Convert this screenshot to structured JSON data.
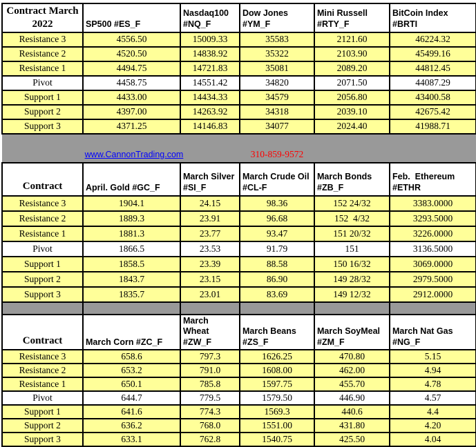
{
  "banner": {
    "link_text": "www.CannonTrading.com",
    "phone": "310-859-9572"
  },
  "colors": {
    "row_yellow": "#FFFF99",
    "pivot_white": "#FFFFFF",
    "band_gray": "#999999",
    "band_dark_gray": "#808080",
    "link_blue": "#0000FF",
    "phone_red": "#FF0000",
    "grid_black": "#000000",
    "navy_strip": "#000080"
  },
  "tables": [
    {
      "id": "stock-indices",
      "corner": "Contract March\n2022",
      "headers": [
        "SP500 #ES_F",
        "Nasdaq100\n#NQ_F",
        "Dow Jones\n#YM_F",
        "Mini Russell\n#RTY_F",
        "BitCoin Index #BRTI"
      ],
      "rows": [
        {
          "label": "Resistance 3",
          "values": [
            "4556.50",
            "15009.33",
            "35583",
            "2121.60",
            "46224.32"
          ]
        },
        {
          "label": "Resistance 2",
          "values": [
            "4520.50",
            "14838.92",
            "35322",
            "2103.90",
            "45499.16"
          ]
        },
        {
          "label": "Resistance 1",
          "values": [
            "4494.75",
            "14721.83",
            "35081",
            "2089.20",
            "44812.45"
          ]
        },
        {
          "label": "Pivot",
          "values": [
            "4458.75",
            "14551.42",
            "34820",
            "2071.50",
            "44087.29"
          ]
        },
        {
          "label": "Support 1",
          "values": [
            "4433.00",
            "14434.33",
            "34579",
            "2056.80",
            "43400.58"
          ]
        },
        {
          "label": "Support 2",
          "values": [
            "4397.00",
            "14263.92",
            "34318",
            "2039.10",
            "42675.42"
          ]
        },
        {
          "label": "Support 3",
          "values": [
            "4371.25",
            "14146.83",
            "34077",
            "2024.40",
            "41988.71"
          ]
        }
      ]
    },
    {
      "id": "metals-energy-bonds",
      "corner": "Contract",
      "headers": [
        "April. Gold #GC_F",
        "March Silver\n#SI_F",
        "March Crude Oil\n#CL-F",
        "March Bonds\n#ZB_F",
        "Feb.  Ethereum\n#ETHR"
      ],
      "rows": [
        {
          "label": "Resistance 3",
          "values": [
            "1904.1",
            "24.15",
            "98.36",
            "152 24/32",
            "3383.0000"
          ]
        },
        {
          "label": "Resistance 2",
          "values": [
            "1889.3",
            "23.91",
            "96.68",
            "152  4/32",
            "3293.5000"
          ]
        },
        {
          "label": "Resistance 1",
          "values": [
            "1881.3",
            "23.77",
            "93.47",
            "151 20/32",
            "3226.0000"
          ]
        },
        {
          "label": "Pivot",
          "values": [
            "1866.5",
            "23.53",
            "91.79",
            "151",
            "3136.5000"
          ]
        },
        {
          "label": "Support 1",
          "values": [
            "1858.5",
            "23.39",
            "88.58",
            "150 16/32",
            "3069.0000"
          ]
        },
        {
          "label": "Support 2",
          "values": [
            "1843.7",
            "23.15",
            "86.90",
            "149 28/32",
            "2979.5000"
          ]
        },
        {
          "label": "Support 3",
          "values": [
            "1835.7",
            "23.01",
            "83.69",
            "149 12/32",
            "2912.0000"
          ]
        }
      ]
    },
    {
      "id": "grains-natgas",
      "corner": "Contract",
      "headers": [
        "March Corn #ZC_F",
        "March  Wheat\n#ZW_F",
        "March Beans\n#ZS_F",
        "March SoyMeal\n#ZM_F",
        "March Nat Gas\n#NG_F"
      ],
      "rows": [
        {
          "label": "Resistance 3",
          "values": [
            "658.6",
            "797.3",
            "1626.25",
            "470.80",
            "5.15"
          ]
        },
        {
          "label": "Resistance 2",
          "values": [
            "653.2",
            "791.0",
            "1608.00",
            "462.00",
            "4.94"
          ]
        },
        {
          "label": "Resistance 1",
          "values": [
            "650.1",
            "785.8",
            "1597.75",
            "455.70",
            "4.78"
          ]
        },
        {
          "label": "Pivot",
          "values": [
            "644.7",
            "779.5",
            "1579.50",
            "446.90",
            "4.57"
          ]
        },
        {
          "label": "Support 1",
          "values": [
            "641.6",
            "774.3",
            "1569.3",
            "440.6",
            "4.4"
          ]
        },
        {
          "label": "Support 2",
          "values": [
            "636.2",
            "768.0",
            "1551.00",
            "431.80",
            "4.20"
          ]
        },
        {
          "label": "Support 3",
          "values": [
            "633.1",
            "762.8",
            "1540.75",
            "425.50",
            "4.04"
          ]
        }
      ]
    }
  ]
}
